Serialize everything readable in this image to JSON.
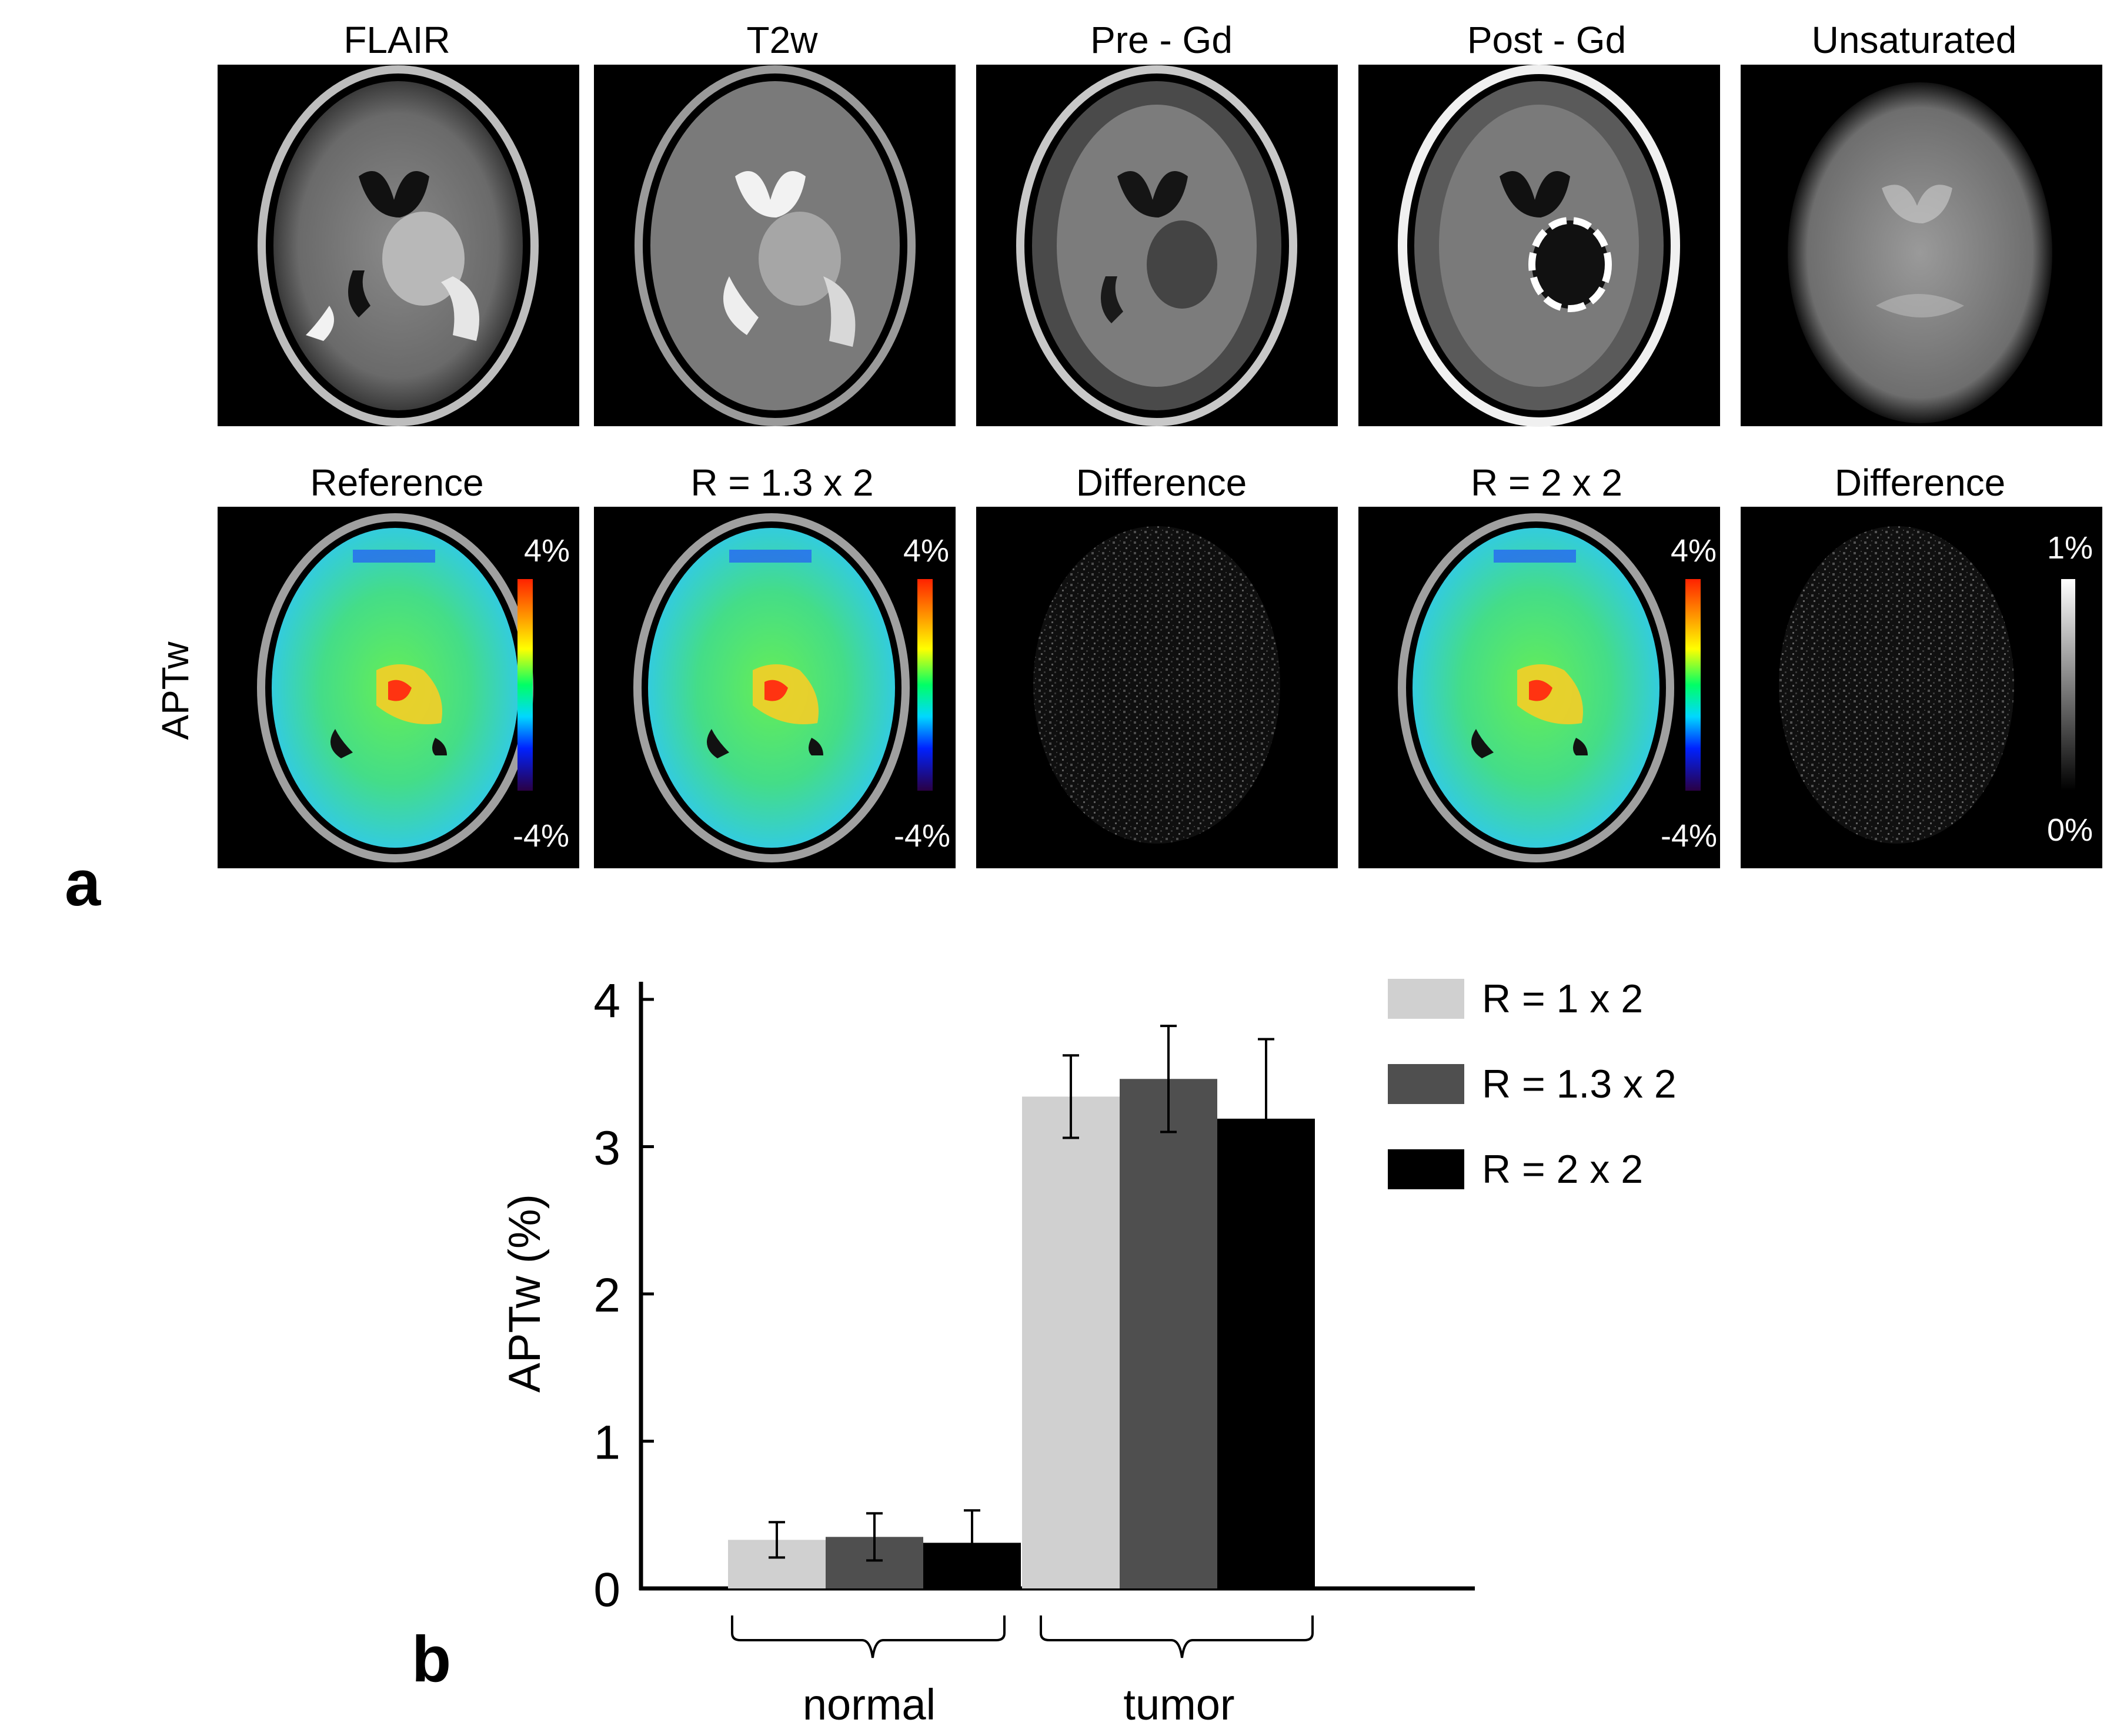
{
  "panel_a": {
    "letter": "a",
    "row1_titles": [
      "FLAIR",
      "T2w",
      "Pre - Gd",
      "Post - Gd",
      "Unsaturated"
    ],
    "row2_titles": [
      "Reference",
      "R = 1.3 x 2",
      "Difference",
      "R = 2 x 2",
      "Difference"
    ],
    "row_label": "APTw",
    "colorbar_color": {
      "max": "4%",
      "min": "-4%"
    },
    "colorbar_gray": {
      "max": "1%",
      "min": "0%"
    }
  },
  "panel_b": {
    "letter": "b",
    "ylabel": "APTw (%)",
    "legend_labels": [
      "R = 1 x 2",
      "R = 1.3 x 2",
      "R = 2 x 2"
    ]
  },
  "chart_data": {
    "type": "bar",
    "categories": [
      "normal",
      "tumor"
    ],
    "ylim": [
      0,
      4
    ],
    "yticks": [
      0,
      1,
      2,
      3,
      4
    ],
    "ylabel": "APTw (%)",
    "legend_placement": "top-right",
    "grid": false,
    "series": [
      {
        "name": "R = 1 x 2",
        "color": "#d0d0d0",
        "values": [
          0.33,
          3.34
        ],
        "errors": [
          0.12,
          0.28
        ]
      },
      {
        "name": "R = 1.3 x 2",
        "color": "#4f4f4f",
        "values": [
          0.35,
          3.46
        ],
        "errors": [
          0.16,
          0.36
        ]
      },
      {
        "name": "R = 2 x 2",
        "color": "#000000",
        "values": [
          0.31,
          3.19
        ],
        "errors": [
          0.22,
          0.54
        ]
      }
    ]
  }
}
